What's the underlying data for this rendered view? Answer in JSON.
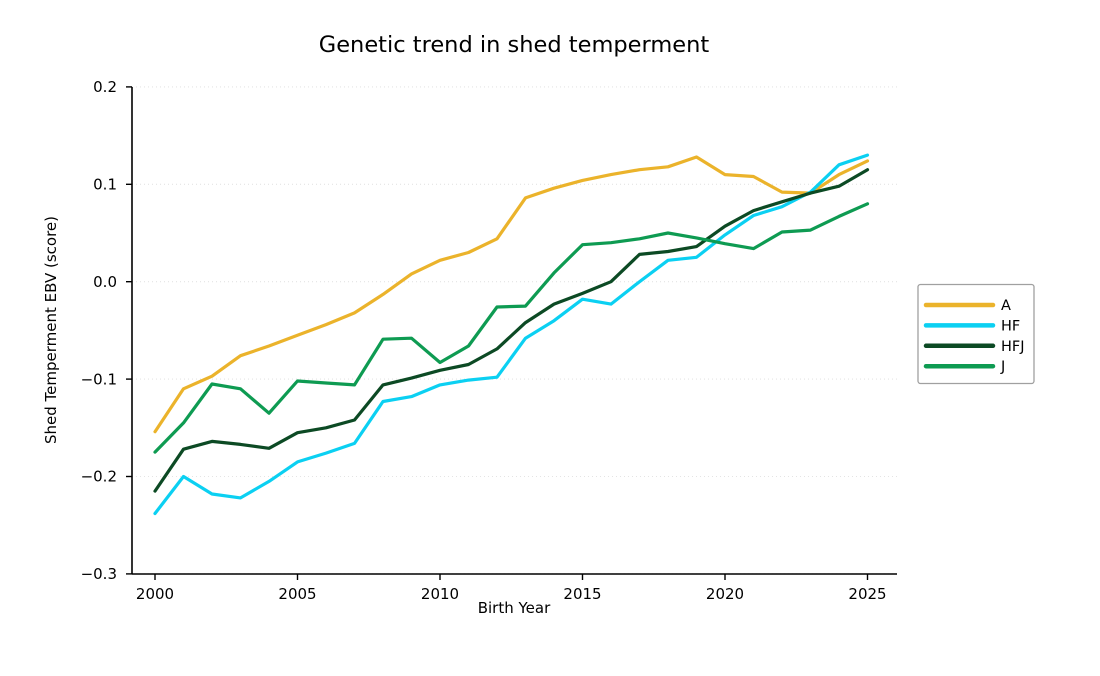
{
  "figure": {
    "background": "#ffffff"
  },
  "chart_data": {
    "type": "line",
    "title": "Genetic trend in shed temperment",
    "xlabel": "Birth Year",
    "ylabel": "Shed Temperment EBV (score)",
    "xlim": [
      1999.2,
      2026.05
    ],
    "ylim": [
      -0.3,
      0.2
    ],
    "xticks": [
      2000,
      2005,
      2010,
      2015,
      2020,
      2025
    ],
    "yticks": [
      0.2,
      0.1,
      0.0,
      -0.1,
      -0.2,
      -0.3
    ],
    "ytick_labels": [
      "0.2",
      "0.1",
      "0.0",
      "−0.1",
      "−0.2",
      "−0.3"
    ],
    "grid": "horizontal-dotted",
    "grid_color": "#e4e4e4",
    "legend_position": "outside-right",
    "legend_border_color": "#a0a0a0",
    "x": [
      2000,
      2001,
      2002,
      2003,
      2004,
      2005,
      2006,
      2007,
      2008,
      2009,
      2010,
      2011,
      2012,
      2013,
      2014,
      2015,
      2016,
      2017,
      2018,
      2019,
      2020,
      2021,
      2022,
      2023,
      2024,
      2025
    ],
    "series": [
      {
        "name": "A",
        "color": "#EBB32B",
        "values": [
          -0.154,
          -0.11,
          -0.097,
          -0.076,
          -0.066,
          -0.055,
          -0.044,
          -0.032,
          -0.013,
          0.008,
          0.022,
          0.03,
          0.044,
          0.086,
          0.096,
          0.104,
          0.11,
          0.115,
          0.118,
          0.128,
          0.11,
          0.108,
          0.092,
          0.091,
          0.11,
          0.124
        ]
      },
      {
        "name": "HF",
        "color": "#0BD0F2",
        "values": [
          -0.238,
          -0.2,
          -0.218,
          -0.222,
          -0.205,
          -0.185,
          -0.176,
          -0.166,
          -0.123,
          -0.118,
          -0.106,
          -0.101,
          -0.098,
          -0.058,
          -0.04,
          -0.018,
          -0.023,
          0.0,
          0.022,
          0.025,
          0.048,
          0.068,
          0.077,
          0.092,
          0.12,
          0.13
        ]
      },
      {
        "name": "HFJ",
        "color": "#0C4A24",
        "values": [
          -0.215,
          -0.172,
          -0.164,
          -0.167,
          -0.171,
          -0.155,
          -0.15,
          -0.142,
          -0.106,
          -0.099,
          -0.091,
          -0.085,
          -0.069,
          -0.042,
          -0.023,
          -0.012,
          0.0,
          0.028,
          0.031,
          0.036,
          0.057,
          0.073,
          0.082,
          0.091,
          0.098,
          0.115
        ]
      },
      {
        "name": "J",
        "color": "#0E9B52",
        "values": [
          -0.175,
          -0.145,
          -0.105,
          -0.11,
          -0.135,
          -0.102,
          -0.104,
          -0.106,
          -0.059,
          -0.058,
          -0.083,
          -0.066,
          -0.026,
          -0.025,
          0.009,
          0.038,
          0.04,
          0.044,
          0.05,
          0.045,
          0.039,
          0.034,
          0.051,
          0.053,
          0.067,
          0.08
        ]
      }
    ]
  }
}
